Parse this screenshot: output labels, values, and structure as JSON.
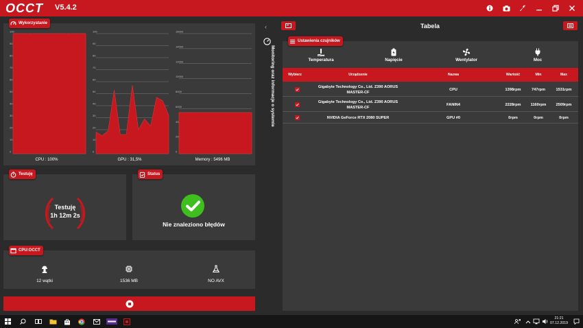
{
  "app": {
    "logo_text": "OCCT",
    "version": "V5.4.2"
  },
  "colors": {
    "accent": "#c8181f",
    "panel": "#3a3a3a",
    "background": "#2b2b2b",
    "ok_green": "#3fbf1f"
  },
  "titlebar_icons": [
    "info-icon",
    "camera-icon",
    "wrench-icon",
    "minimize-icon",
    "restore-icon",
    "close-icon"
  ],
  "usage_panel": {
    "title": "Wykorzystanie",
    "charts": [
      {
        "label": "CPU : 100%",
        "ticks": [
          "100",
          "90",
          "80",
          "70",
          "60",
          "50",
          "40",
          "30",
          "20",
          "10",
          "0"
        ]
      },
      {
        "label": "GPU : 31,5%",
        "ticks": [
          "100",
          "90",
          "80",
          "70",
          "60",
          "50",
          "40",
          "30",
          "20",
          "10",
          "0"
        ]
      },
      {
        "label": "Memory : 5496 MB",
        "ticks": [
          "16000",
          "14000",
          "12000",
          "10000",
          "8000",
          "6000",
          "4000",
          "2000",
          "0"
        ]
      }
    ]
  },
  "chart_data": [
    {
      "type": "area",
      "title": "CPU : 100%",
      "xlabel": "",
      "ylabel": "",
      "ylim": [
        0,
        100
      ],
      "values": [
        100,
        100,
        100,
        100,
        100,
        100,
        100,
        100,
        100,
        100,
        100,
        100,
        100,
        100,
        100,
        100
      ]
    },
    {
      "type": "area",
      "title": "GPU : 31,5%",
      "xlabel": "",
      "ylabel": "",
      "ylim": [
        0,
        100
      ],
      "values": [
        18,
        15,
        19,
        53,
        16,
        16,
        57,
        20,
        29,
        23,
        47,
        44,
        32
      ]
    },
    {
      "type": "area",
      "title": "Memory : 5496 MB",
      "xlabel": "",
      "ylabel": "",
      "ylim": [
        0,
        16000
      ],
      "values": [
        5496,
        5496,
        5496,
        5496,
        5496,
        5496,
        5496,
        5496
      ]
    }
  ],
  "test_panel": {
    "title": "Testuję",
    "line1": "Testuję",
    "line2": "1h 12m 2s"
  },
  "status_panel": {
    "title": "Status",
    "message": "Nie znaleziono błędów"
  },
  "cpu_panel": {
    "title": "CPU:OCCT",
    "items": [
      {
        "icon": "worker-icon",
        "label": "12 wątki"
      },
      {
        "icon": "chip-icon",
        "label": "1536 MB"
      },
      {
        "icon": "flask-icon",
        "label": "NO AVX"
      }
    ]
  },
  "stop_button": {
    "icon": "stop-icon"
  },
  "side_panel": {
    "label": "Monitoring oraz informacje o systemie"
  },
  "right": {
    "title": "Tabela",
    "sensors_title": "Ustawienia czujników",
    "tabs": [
      {
        "label": "Temperatura",
        "icon": "thermometer-icon"
      },
      {
        "label": "Napięcie",
        "icon": "battery-icon"
      },
      {
        "label": "Wentylator",
        "icon": "fan-icon"
      },
      {
        "label": "Moc",
        "icon": "plug-icon"
      }
    ],
    "active_tab": "Wentylator",
    "columns": [
      "Wybierz",
      "Urządzenie",
      "Nazwa",
      "Wartość",
      "Min",
      "Max"
    ],
    "rows": [
      {
        "checked": true,
        "device_line1": "Gigabyte Technology Co., Ltd. Z390 AORUS",
        "device_line2": "MASTER-CF",
        "name": "CPU",
        "value": "1398rpm",
        "min": "747rpm",
        "max": "1531rpm"
      },
      {
        "checked": true,
        "device_line1": "Gigabyte Technology Co., Ltd. Z390 AORUS",
        "device_line2": "MASTER-CF",
        "name": "FANIN4",
        "value": "2228rpm",
        "min": "1160rpm",
        "max": "2509rpm"
      },
      {
        "checked": true,
        "device_line1": "NVIDIA GeForce RTX 2080 SUPER",
        "device_line2": "",
        "name": "GPU #0",
        "value": "0rpm",
        "min": "0rpm",
        "max": "0rpm"
      }
    ]
  },
  "taskbar": {
    "time": "21:21",
    "date": "07.12.2019"
  }
}
